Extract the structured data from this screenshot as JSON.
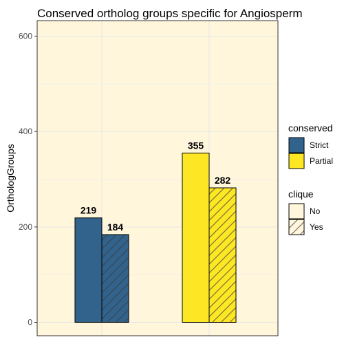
{
  "chart_data": {
    "type": "bar",
    "title": "Conserved ortholog groups specific for Angiosperm",
    "xlabel": "",
    "ylabel": "OrthologGroups",
    "ylim": [
      0,
      630
    ],
    "yticks": [
      0,
      200,
      400,
      600
    ],
    "grid": true,
    "background": "#fff6dc",
    "categories": [
      "Strict",
      "Partial"
    ],
    "series": [
      {
        "name": "No",
        "values": [
          219,
          355
        ],
        "hatched": false
      },
      {
        "name": "Yes",
        "values": [
          184,
          282
        ],
        "hatched": true
      }
    ],
    "fill_colors": {
      "Strict": "#32638c",
      "Partial": "#fde725"
    },
    "legend_placement": "right",
    "legends": [
      {
        "title": "conserved",
        "entries": [
          {
            "label": "Strict",
            "color": "#32638c",
            "hatched": false
          },
          {
            "label": "Partial",
            "color": "#fde725",
            "hatched": false
          }
        ]
      },
      {
        "title": "clique",
        "entries": [
          {
            "label": "No",
            "color": "#fff6dc",
            "hatched": false
          },
          {
            "label": "Yes",
            "color": "#fff6dc",
            "hatched": true
          }
        ]
      }
    ]
  }
}
